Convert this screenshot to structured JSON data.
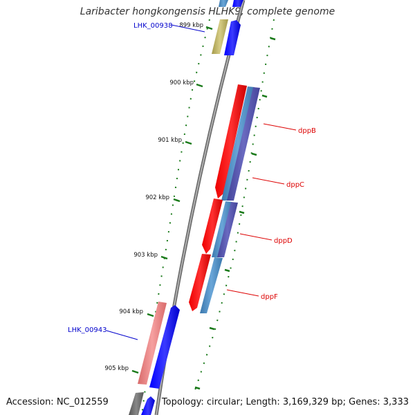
{
  "title": "Laribacter hongkongensis HLHK9, complete genome",
  "footer": {
    "accession": "Accession: NC_012559",
    "summary": "Topology: circular; Length: 3,169,329 bp; Genes: 3,333"
  },
  "ticks": [
    "899 kbp",
    "900 kbp",
    "901 kbp",
    "902 kbp",
    "903 kbp",
    "904 kbp",
    "905 kbp"
  ],
  "locus_labels": [
    "LHK_00938",
    "LHK_00943"
  ],
  "gene_labels": [
    "dppB",
    "dppC",
    "dppD",
    "dppF"
  ],
  "colors": {
    "backbone": "#8a8a8a",
    "tick": "#1a7a1a",
    "forward_cds": "#0000ff",
    "reverse_cds": "#ff0000",
    "steel": "#4f8fc6",
    "purple": "#5555aa",
    "olive": "#b5aa5a",
    "pink": "#e87f7f",
    "dark": "#666666",
    "locus_label": "#0000cc",
    "gene_label": "#dd0000"
  }
}
